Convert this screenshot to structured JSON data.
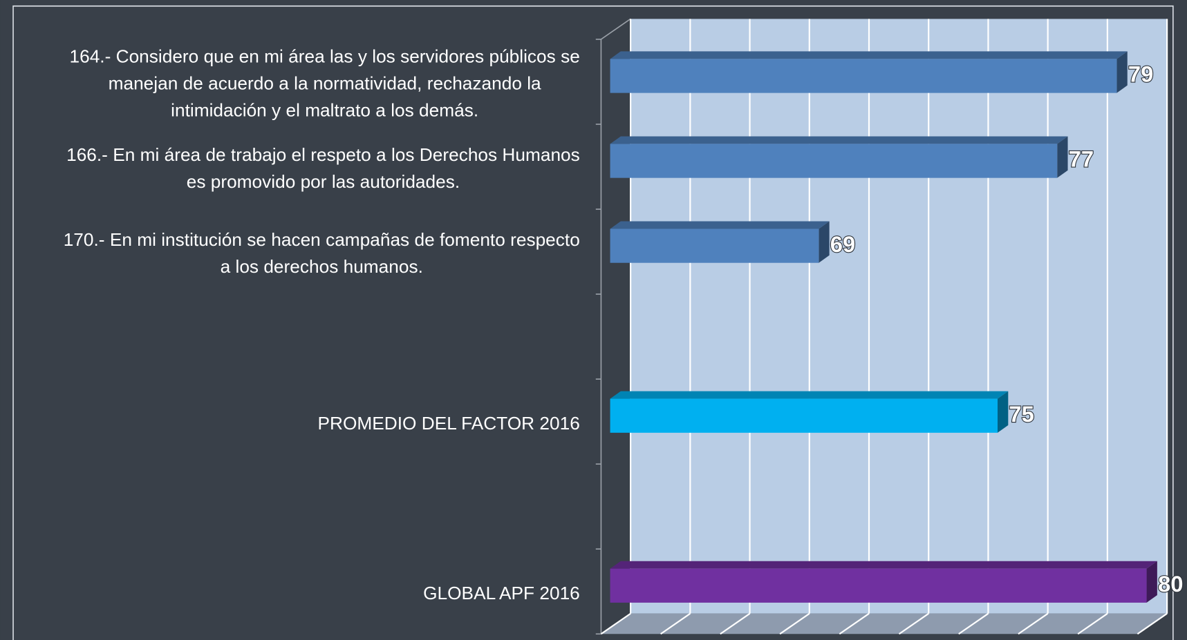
{
  "chart_data": {
    "type": "bar3d_horizontal",
    "categories": [
      "164.- Considero que en mi área las y los servidores públicos se\nmanejan de acuerdo a la normatividad, rechazando la\nintimidación y el maltrato a los demás.",
      "166.- En mi área de trabajo el respeto a los Derechos Humanos\nes promovido por las autoridades.",
      "170.- En mi institución se hacen campañas de fomento respecto\na los derechos humanos.",
      null,
      "PROMEDIO DEL FACTOR 2016",
      null,
      "GLOBAL APF 2016"
    ],
    "values": [
      79,
      77,
      69,
      null,
      75,
      null,
      80
    ],
    "colors": [
      "#4f81bd",
      "#4f81bd",
      "#4f81bd",
      null,
      "#00b0f0",
      null,
      "#7030a0"
    ],
    "xlim": [
      62,
      80
    ],
    "xticks": [
      62,
      64,
      66,
      68,
      70,
      72,
      74,
      76,
      78,
      80
    ],
    "grid": true
  }
}
